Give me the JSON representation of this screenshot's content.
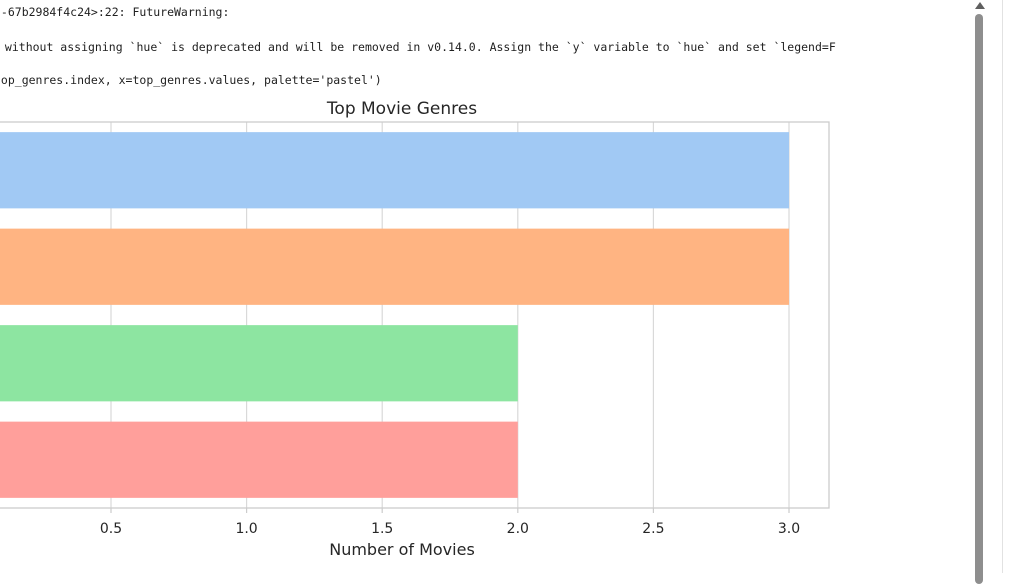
{
  "warning": {
    "line1": "--67b2984f4c24>:22: FutureWarning:",
    "line2": " without assigning `hue` is deprecated and will be removed in v0.14.0. Assign the `y` variable to `hue` and set `legend=F",
    "line3": "top_genres.index, x=top_genres.values, palette='pastel')"
  },
  "chart_data": {
    "type": "bar",
    "orientation": "horizontal",
    "title": "Top Movie Genres",
    "xlabel": "Number of Movies",
    "xlim": [
      0,
      3.15
    ],
    "xticks": [
      0.5,
      1.0,
      1.5,
      2.0,
      2.5,
      3.0
    ],
    "xtick_labels": [
      "0.5",
      "1.0",
      "1.5",
      "2.0",
      "2.5",
      "3.0"
    ],
    "grid": true,
    "values": [
      3,
      3,
      2,
      2
    ],
    "colors": [
      "#a1c9f4",
      "#ffb482",
      "#8de5a1",
      "#ff9f9b"
    ]
  }
}
